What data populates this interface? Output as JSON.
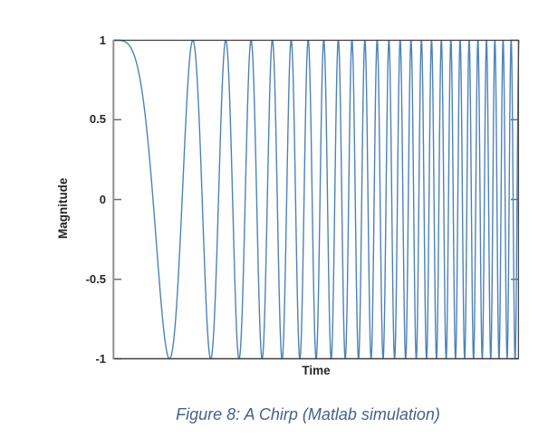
{
  "figure": {
    "caption": "Figure 8: A Chirp (Matlab simulation)",
    "caption_color": "#46618c"
  },
  "chart_data": {
    "type": "line",
    "title": "",
    "xlabel": "Time",
    "ylabel": "Magnitude",
    "x_range": [
      0,
      1
    ],
    "ylim": [
      -1,
      1
    ],
    "y_tick_labels": [
      "1",
      "0.5",
      "0",
      "-0.5",
      "-1"
    ],
    "y_tick_values": [
      1,
      0.5,
      0,
      -0.5,
      -1
    ],
    "x_tick_labels": [],
    "grid": false,
    "legend": null,
    "series": [
      {
        "name": "chirp",
        "signal": "cos(2*pi*k*t^2), t in [0,1]",
        "k_cycles_total": 26,
        "amplitude": 1,
        "start_value": 1,
        "end_value": 1,
        "color": "#4d82ba"
      }
    ],
    "style": {
      "plot_background": "#ffffff",
      "axis_box_color": "#3f3f3f",
      "left_axis_color": "#8f8f8f",
      "tick_color": "#6e6e6e",
      "tick_direction": "in",
      "ticks_on_right": true
    }
  }
}
